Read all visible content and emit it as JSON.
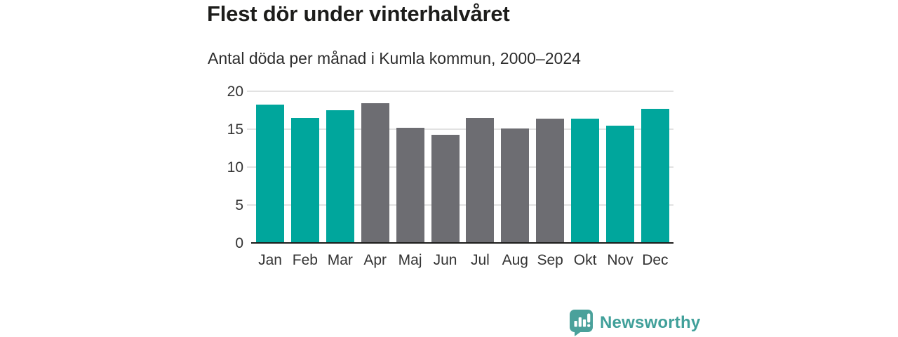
{
  "header": {
    "title": "Flest dör under vinterhalvåret",
    "subtitle": "Antal döda per månad i Kumla kommun, 2000–2024"
  },
  "chart_data": {
    "type": "bar",
    "title": "Flest dör under vinterhalvåret",
    "subtitle": "Antal döda per månad i Kumla kommun, 2000–2024",
    "categories": [
      "Jan",
      "Feb",
      "Mar",
      "Apr",
      "Maj",
      "Jun",
      "Jul",
      "Aug",
      "Sep",
      "Okt",
      "Nov",
      "Dec"
    ],
    "values": [
      18.2,
      16.5,
      17.5,
      18.4,
      15.2,
      14.3,
      16.5,
      15.1,
      16.4,
      16.4,
      15.5,
      17.7
    ],
    "bar_color_groups": [
      "teal",
      "teal",
      "teal",
      "gray",
      "gray",
      "gray",
      "gray",
      "gray",
      "gray",
      "teal",
      "teal",
      "teal"
    ],
    "colors": {
      "teal": "#00a69c",
      "gray": "#6d6d72"
    },
    "xlabel": "",
    "ylabel": "",
    "ylim": [
      0,
      20
    ],
    "yticks": [
      0,
      5,
      10,
      15,
      20
    ],
    "grid": true,
    "legend": "none"
  },
  "footer": {
    "brand": "Newsworthy",
    "brand_color": "#41a09a",
    "logo_icon": "bar-chart-speech-bubble"
  }
}
